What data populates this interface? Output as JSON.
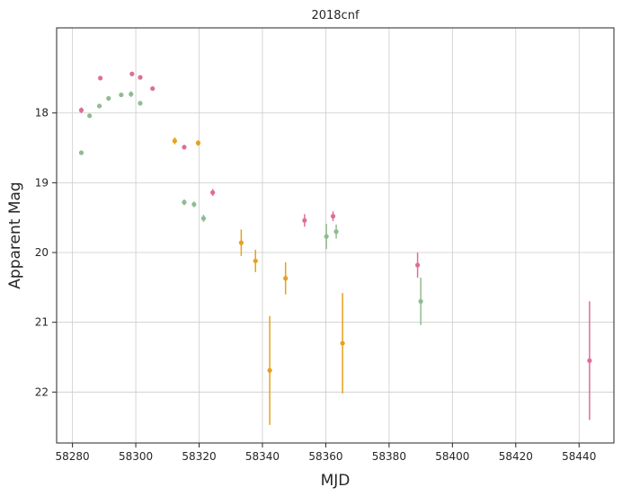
{
  "chart_data": {
    "type": "scatter",
    "title": "2018cnf",
    "xlabel": "MJD",
    "ylabel": "Apparent Mag",
    "xlim": [
      58275,
      58451
    ],
    "ylim": [
      22.73,
      16.78
    ],
    "y_inverted": true,
    "grid": true,
    "x_ticks": [
      58280,
      58300,
      58320,
      58340,
      58360,
      58380,
      58400,
      58420,
      58440
    ],
    "y_ticks": [
      18,
      19,
      20,
      21,
      22
    ],
    "series": [
      {
        "name": "pink",
        "color": "#dd6e99",
        "points": [
          {
            "x": 58282.8,
            "y": 17.96,
            "err": 0.04
          },
          {
            "x": 58288.8,
            "y": 17.5,
            "err": 0.02
          },
          {
            "x": 58298.8,
            "y": 17.44,
            "err": 0.02
          },
          {
            "x": 58301.4,
            "y": 17.49,
            "err": 0.02
          },
          {
            "x": 58305.3,
            "y": 17.65,
            "err": 0.02
          },
          {
            "x": 58315.3,
            "y": 18.49,
            "err": 0.03
          },
          {
            "x": 58324.3,
            "y": 19.14,
            "err": 0.05
          },
          {
            "x": 58353.3,
            "y": 19.54,
            "err": 0.09
          },
          {
            "x": 58362.3,
            "y": 19.48,
            "err": 0.07
          },
          {
            "x": 58389.0,
            "y": 20.18,
            "err": 0.18
          },
          {
            "x": 58443.3,
            "y": 21.55,
            "err": 0.85
          }
        ]
      },
      {
        "name": "green",
        "color": "#8fbc8f",
        "points": [
          {
            "x": 58282.8,
            "y": 18.57,
            "err": 0.03
          },
          {
            "x": 58285.4,
            "y": 18.04,
            "err": 0.02
          },
          {
            "x": 58288.5,
            "y": 17.9,
            "err": 0.02
          },
          {
            "x": 58291.4,
            "y": 17.79,
            "err": 0.02
          },
          {
            "x": 58295.4,
            "y": 17.74,
            "err": 0.02
          },
          {
            "x": 58298.5,
            "y": 17.73,
            "err": 0.04
          },
          {
            "x": 58301.4,
            "y": 17.86,
            "err": 0.03
          },
          {
            "x": 58315.3,
            "y": 19.28,
            "err": 0.04
          },
          {
            "x": 58318.4,
            "y": 19.31,
            "err": 0.04
          },
          {
            "x": 58321.4,
            "y": 19.51,
            "err": 0.05
          },
          {
            "x": 58360.2,
            "y": 19.77,
            "err": 0.18
          },
          {
            "x": 58363.3,
            "y": 19.7,
            "err": 0.1
          },
          {
            "x": 58390.0,
            "y": 20.7,
            "err": 0.34
          }
        ]
      },
      {
        "name": "orange",
        "color": "#e6a11e",
        "points": [
          {
            "x": 58312.3,
            "y": 18.4,
            "err": 0.05
          },
          {
            "x": 58319.7,
            "y": 18.43,
            "err": 0.04
          },
          {
            "x": 58333.3,
            "y": 19.86,
            "err": 0.19
          },
          {
            "x": 58337.8,
            "y": 20.12,
            "err": 0.16
          },
          {
            "x": 58347.3,
            "y": 20.37,
            "err": 0.23
          },
          {
            "x": 58342.3,
            "y": 21.69,
            "err": 0.78
          },
          {
            "x": 58365.3,
            "y": 21.3,
            "err": 0.72
          }
        ]
      }
    ]
  }
}
